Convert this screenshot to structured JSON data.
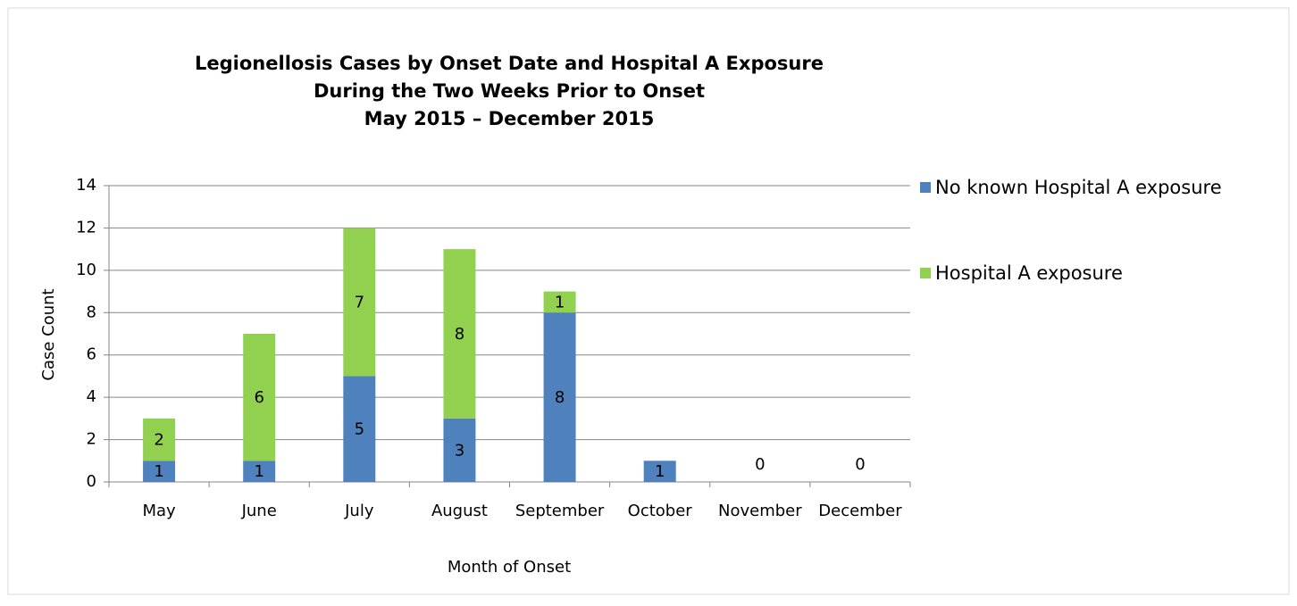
{
  "chart_data": {
    "type": "stacked_bar",
    "title": [
      "Legionellosis Cases by Onset Date and Hospital A Exposure",
      "During the Two Weeks Prior to Onset",
      "May 2015 – December 2015"
    ],
    "x_label": "Month of Onset",
    "y_label": "Case Count",
    "categories": [
      "May",
      "June",
      "July",
      "August",
      "September",
      "October",
      "November",
      "December"
    ],
    "series": [
      {
        "name": "No known Hospital A exposure",
        "color": "#4f81bd",
        "values": [
          1,
          1,
          5,
          3,
          8,
          1,
          0,
          0
        ]
      },
      {
        "name": "Hospital A exposure",
        "color": "#92d050",
        "values": [
          2,
          6,
          7,
          8,
          1,
          0,
          0,
          0
        ]
      }
    ],
    "ylim": [
      0,
      14
    ],
    "yticks": [
      0,
      2,
      4,
      6,
      8,
      10,
      12,
      14
    ],
    "grid": true,
    "legend": "right"
  }
}
